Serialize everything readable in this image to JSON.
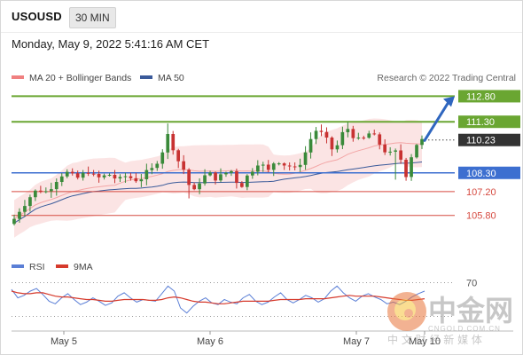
{
  "header": {
    "symbol": "USOUSD",
    "interval": "30 MIN",
    "datetime": "Monday, May 9, 2022 5:41:16 AM CET"
  },
  "legend": {
    "items": [
      {
        "label": "MA 20 + Bollinger Bands",
        "color": "#f08080"
      },
      {
        "label": "MA 50",
        "color": "#3a5a9a"
      }
    ],
    "credit": "Research © 2022 Trading Central"
  },
  "rsi_legend": {
    "items": [
      {
        "label": "RSI",
        "color": "#5b7fd6"
      },
      {
        "label": "9MA",
        "color": "#d63a2c"
      }
    ]
  },
  "colors": {
    "green_level": "#6aa632",
    "blue_level": "#3d6fd0",
    "red_level": "#d64a40",
    "current_price": "#333333",
    "candle_up": "#3a8a3a",
    "candle_down": "#c83232",
    "band_fill": "#fbe4e4",
    "arrow": "#2f66bf"
  },
  "watermark": {
    "brand": "中金网",
    "url": "CNGOLD.COM.CN",
    "tagline": "中 文 财 经 新 媒 体"
  },
  "chart_data": [
    {
      "type": "candlestick",
      "title": "USOUSD",
      "xlabel": "",
      "ylabel": "",
      "ylim": [
        103.7,
        113.5
      ],
      "x_ticks": [
        "May 5",
        "May 6",
        "May 7",
        "May 10"
      ],
      "levels": [
        {
          "label": "112.80",
          "value": 112.8,
          "kind": "resistance"
        },
        {
          "label": "111.30",
          "value": 111.3,
          "kind": "resistance"
        },
        {
          "label": "110.23",
          "value": 110.23,
          "kind": "current"
        },
        {
          "label": "108.30",
          "value": 108.3,
          "kind": "pivot"
        },
        {
          "label": "107.20",
          "value": 107.2,
          "kind": "support"
        },
        {
          "label": "105.80",
          "value": 105.8,
          "kind": "support"
        }
      ],
      "projection": {
        "from": 110.2,
        "to": 112.8
      },
      "anchors": [
        105.6,
        106.1,
        106.5,
        106.9,
        107.2,
        107.3,
        107.2,
        107.5,
        107.9,
        108.2,
        108.3,
        108.1,
        108.0,
        108.2,
        108.4,
        108.1,
        108.0,
        108.1,
        108.2,
        108.0,
        107.9,
        108.1,
        108.0,
        107.9,
        108.0,
        108.3,
        108.5,
        109.0,
        109.6,
        110.5,
        109.8,
        109.0,
        108.5,
        107.6,
        107.2,
        107.8,
        108.1,
        108.2,
        108.0,
        108.1,
        108.3,
        108.4,
        107.8,
        107.6,
        108.1,
        108.5,
        108.9,
        108.7,
        108.4,
        108.9,
        109.0,
        108.8,
        108.7,
        108.5,
        108.9,
        109.5,
        110.3,
        110.8,
        110.6,
        110.2,
        109.7,
        109.9,
        110.6,
        110.9,
        110.5,
        110.2,
        110.3,
        110.6,
        110.4,
        110.0,
        109.6,
        109.4,
        109.5,
        109.1,
        108.2,
        109.3,
        110.0,
        110.2
      ]
    },
    {
      "type": "line",
      "title": "RSI",
      "xlabel": "",
      "ylabel": "",
      "ylim": [
        20,
        80
      ],
      "y_ticks": [
        70
      ],
      "series": [
        {
          "name": "RSI",
          "values": [
            62,
            52,
            55,
            60,
            63,
            56,
            48,
            45,
            52,
            57,
            50,
            44,
            47,
            52,
            48,
            43,
            46,
            54,
            58,
            52,
            47,
            50,
            49,
            48,
            57,
            66,
            60,
            40,
            34,
            42,
            48,
            52,
            46,
            44,
            50,
            47,
            45,
            52,
            56,
            48,
            44,
            47,
            53,
            58,
            50,
            46,
            50,
            55,
            52,
            47,
            51,
            60,
            66,
            58,
            52,
            48,
            54,
            57,
            53,
            50,
            45,
            47,
            44,
            48,
            53,
            57,
            60
          ]
        },
        {
          "name": "9MA",
          "values": [
            60,
            58,
            57,
            57,
            58,
            58,
            56,
            54,
            53,
            53,
            52,
            51,
            50,
            50,
            49,
            48,
            48,
            49,
            50,
            50,
            50,
            50,
            49,
            49,
            50,
            52,
            53,
            52,
            50,
            48,
            47,
            47,
            46,
            45,
            45,
            46,
            47,
            48,
            48,
            48,
            48,
            48,
            49,
            50,
            50,
            50,
            50,
            51,
            51,
            51,
            51,
            52,
            53,
            54,
            55,
            54,
            54,
            54,
            54,
            53,
            52,
            51,
            50,
            49,
            49,
            50,
            51
          ]
        }
      ]
    }
  ]
}
